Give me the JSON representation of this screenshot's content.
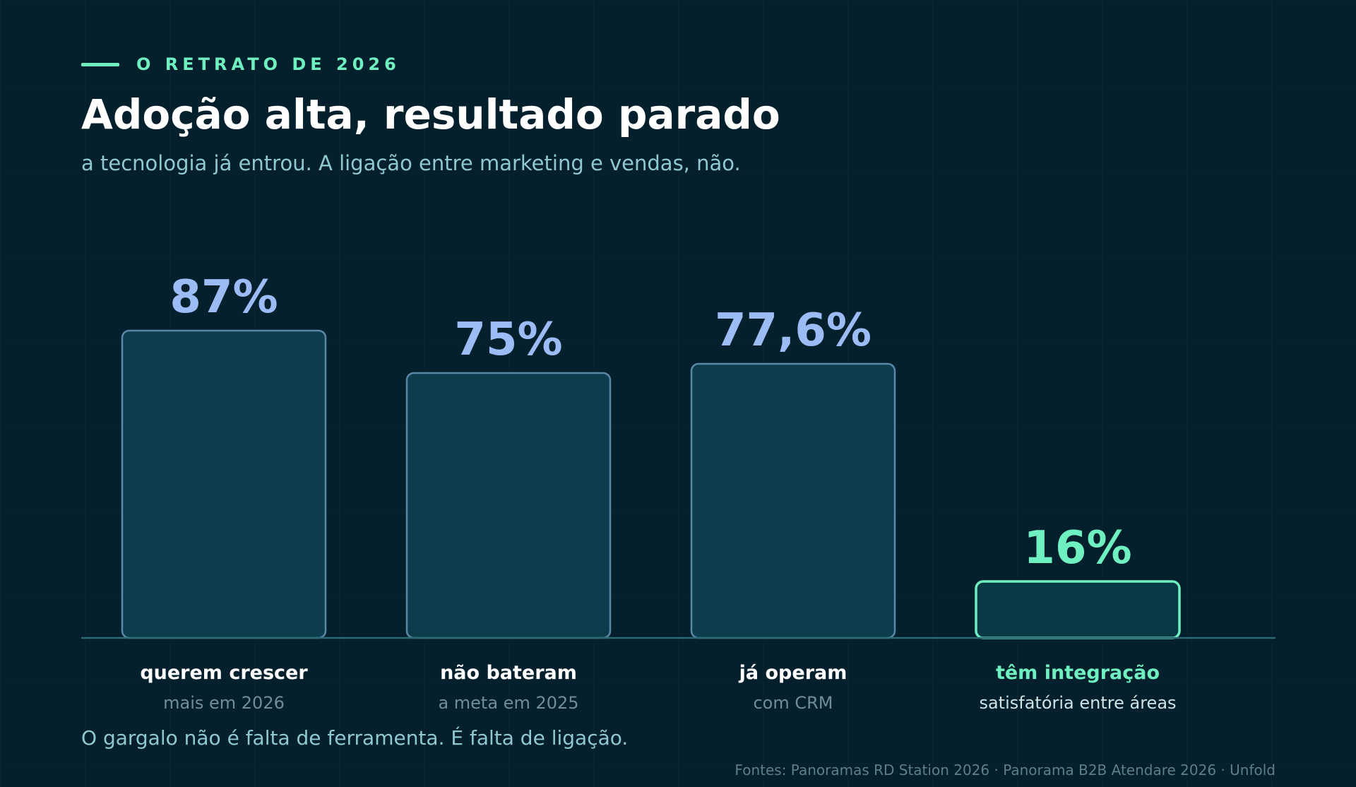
{
  "header": {
    "kicker": "O RETRATO DE 2026",
    "title": "Adoção alta, resultado parado",
    "subtitle": "a tecnologia já entrou. A ligação entre marketing e vendas, não."
  },
  "chart_data": {
    "type": "bar",
    "categories": [
      "querem crescer",
      "não bateram",
      "já operam",
      "têm integração"
    ],
    "sublabels": [
      "mais em 2026",
      "a meta em 2025",
      "com CRM",
      "satisfatória entre áreas"
    ],
    "values": [
      87,
      75,
      77.6,
      16
    ],
    "value_labels": [
      "87%",
      "75%",
      "77,6%",
      "16%"
    ],
    "highlight_index": 3,
    "ylim": [
      0,
      100
    ],
    "grid": false,
    "legend": "none"
  },
  "footnote": "O gargalo não é falta de ferramenta. É falta de ligação.",
  "sources": "Fontes: Panoramas RD Station 2026 · Panorama B2B Atendare 2026 · Unfold",
  "colors": {
    "background": "#04202d",
    "bar_fill": "#0d3d4d",
    "bar_stroke": "#5b87a8",
    "value_text": "#9bbcf5",
    "accent": "#6ff0c0",
    "label_text": "#ffffff",
    "sublabel_text": "#6f8f97",
    "accent_sublabel_text": "#cfe3e6",
    "baseline": "#2c6a73"
  }
}
